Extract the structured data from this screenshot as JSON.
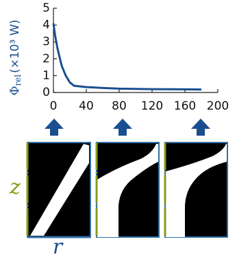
{
  "chart_data": {
    "type": "line",
    "ylabel_symbol": "Φ",
    "ylabel_subscript": "rel",
    "ylabel_unit": "(×10³ W)",
    "x": [
      0,
      2,
      5,
      10,
      15,
      20,
      25,
      40,
      60,
      80,
      120,
      180
    ],
    "series": [
      {
        "color": "#1a4f8f",
        "values": [
          4.1,
          3.4,
          2.6,
          1.6,
          1.0,
          0.6,
          0.4,
          0.32,
          0.27,
          0.23,
          0.2,
          0.18
        ]
      }
    ],
    "xlim": [
      0,
      200
    ],
    "ylim": [
      0,
      5
    ],
    "xticks": [
      0,
      40,
      80,
      120,
      160,
      200
    ],
    "yticks": [
      0,
      1,
      2,
      3,
      4,
      5
    ]
  },
  "panel_labels": {
    "vertical": "z",
    "horizontal": "r"
  }
}
